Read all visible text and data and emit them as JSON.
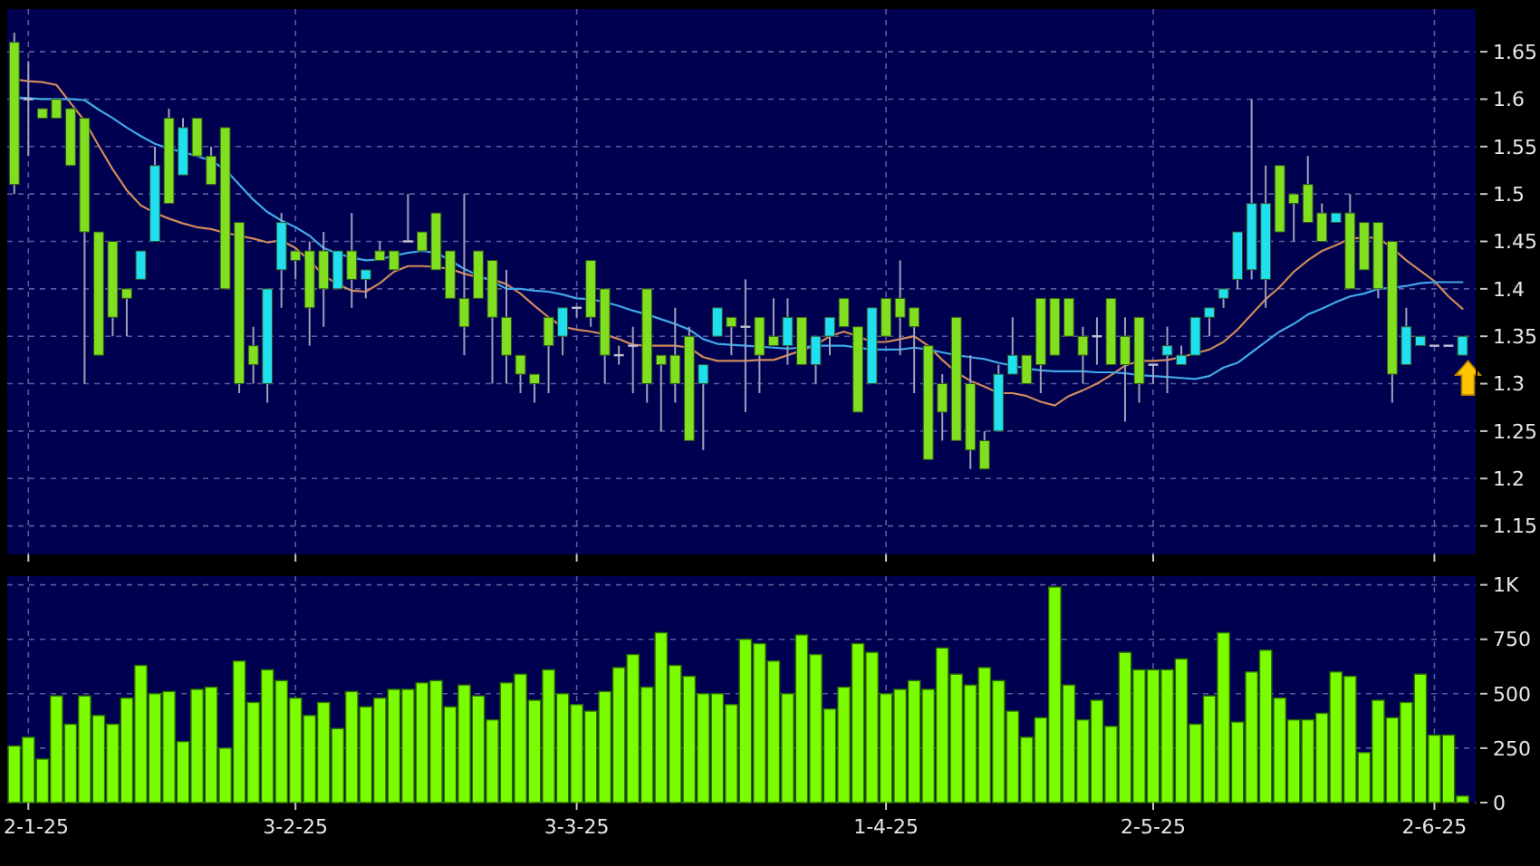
{
  "chart_data": [
    {
      "type": "candlestick",
      "categories": [
        null,
        null,
        null,
        null,
        null,
        null,
        null,
        null,
        null,
        null,
        null,
        null,
        null,
        null,
        null,
        null,
        null,
        null,
        null,
        null,
        null,
        null,
        null,
        null,
        null,
        null,
        null,
        null,
        null,
        null,
        null,
        null,
        null,
        null,
        null,
        null,
        null,
        null,
        null,
        null,
        null,
        null,
        null,
        null,
        null,
        null,
        null,
        null,
        null,
        null,
        null,
        null,
        null,
        null,
        null,
        null,
        null,
        null,
        null,
        null,
        null,
        null,
        null,
        null,
        null,
        null,
        null,
        null,
        null,
        null,
        null,
        null,
        null,
        null,
        null,
        null,
        null,
        null,
        null,
        null,
        null,
        null,
        null,
        null,
        null,
        null,
        null,
        null,
        null,
        null,
        null,
        null,
        null,
        null,
        null,
        null,
        null,
        null,
        null,
        null,
        null,
        null,
        null,
        null
      ],
      "ohlc": [
        [
          1.66,
          1.67,
          1.5,
          1.51
        ],
        [
          1.6,
          1.64,
          1.54,
          1.6
        ],
        [
          1.59,
          1.59,
          1.58,
          1.58
        ],
        [
          1.6,
          1.6,
          1.58,
          1.58
        ],
        [
          1.59,
          1.59,
          1.53,
          1.53
        ],
        [
          1.58,
          1.58,
          1.3,
          1.46
        ],
        [
          1.46,
          1.46,
          1.33,
          1.33
        ],
        [
          1.45,
          1.45,
          1.35,
          1.37
        ],
        [
          1.4,
          1.4,
          1.35,
          1.39
        ],
        [
          1.41,
          1.44,
          1.41,
          1.44
        ],
        [
          1.45,
          1.55,
          1.45,
          1.53
        ],
        [
          1.58,
          1.59,
          1.49,
          1.49
        ],
        [
          1.52,
          1.58,
          1.52,
          1.57
        ],
        [
          1.58,
          1.58,
          1.54,
          1.54
        ],
        [
          1.54,
          1.55,
          1.51,
          1.51
        ],
        [
          1.57,
          1.57,
          1.4,
          1.4
        ],
        [
          1.47,
          1.47,
          1.29,
          1.3
        ],
        [
          1.34,
          1.36,
          1.3,
          1.32
        ],
        [
          1.3,
          1.4,
          1.28,
          1.4
        ],
        [
          1.42,
          1.48,
          1.38,
          1.47
        ],
        [
          1.44,
          1.44,
          1.41,
          1.43
        ],
        [
          1.44,
          1.45,
          1.34,
          1.38
        ],
        [
          1.44,
          1.46,
          1.36,
          1.4
        ],
        [
          1.4,
          1.44,
          1.4,
          1.44
        ],
        [
          1.44,
          1.48,
          1.38,
          1.41
        ],
        [
          1.41,
          1.42,
          1.39,
          1.42
        ],
        [
          1.44,
          1.45,
          1.43,
          1.43
        ],
        [
          1.44,
          1.44,
          1.42,
          1.42
        ],
        [
          1.45,
          1.5,
          1.45,
          1.45
        ],
        [
          1.46,
          1.46,
          1.44,
          1.44
        ],
        [
          1.48,
          1.48,
          1.42,
          1.42
        ],
        [
          1.44,
          1.44,
          1.39,
          1.39
        ],
        [
          1.39,
          1.5,
          1.33,
          1.36
        ],
        [
          1.44,
          1.44,
          1.39,
          1.39
        ],
        [
          1.43,
          1.43,
          1.3,
          1.37
        ],
        [
          1.37,
          1.42,
          1.3,
          1.33
        ],
        [
          1.33,
          1.33,
          1.29,
          1.31
        ],
        [
          1.31,
          1.31,
          1.28,
          1.3
        ],
        [
          1.37,
          1.37,
          1.29,
          1.34
        ],
        [
          1.35,
          1.38,
          1.33,
          1.38
        ],
        [
          1.38,
          1.38,
          1.37,
          1.38
        ],
        [
          1.43,
          1.43,
          1.36,
          1.37
        ],
        [
          1.4,
          1.4,
          1.3,
          1.33
        ],
        [
          1.33,
          1.34,
          1.32,
          1.33
        ],
        [
          1.34,
          1.36,
          1.29,
          1.34
        ],
        [
          1.4,
          1.4,
          1.28,
          1.3
        ],
        [
          1.33,
          1.33,
          1.25,
          1.32
        ],
        [
          1.33,
          1.38,
          1.28,
          1.3
        ],
        [
          1.35,
          1.36,
          1.24,
          1.24
        ],
        [
          1.3,
          1.32,
          1.23,
          1.32
        ],
        [
          1.35,
          1.38,
          1.35,
          1.38
        ],
        [
          1.37,
          1.37,
          1.33,
          1.36
        ],
        [
          1.36,
          1.41,
          1.27,
          1.36
        ],
        [
          1.37,
          1.37,
          1.29,
          1.33
        ],
        [
          1.35,
          1.39,
          1.34,
          1.34
        ],
        [
          1.34,
          1.39,
          1.32,
          1.37
        ],
        [
          1.37,
          1.37,
          1.32,
          1.32
        ],
        [
          1.32,
          1.35,
          1.3,
          1.35
        ],
        [
          1.35,
          1.37,
          1.33,
          1.37
        ],
        [
          1.39,
          1.39,
          1.36,
          1.36
        ],
        [
          1.36,
          1.36,
          1.27,
          1.27
        ],
        [
          1.3,
          1.38,
          1.3,
          1.38
        ],
        [
          1.39,
          1.39,
          1.35,
          1.35
        ],
        [
          1.39,
          1.43,
          1.33,
          1.37
        ],
        [
          1.38,
          1.38,
          1.29,
          1.36
        ],
        [
          1.34,
          1.34,
          1.22,
          1.22
        ],
        [
          1.3,
          1.31,
          1.24,
          1.27
        ],
        [
          1.37,
          1.37,
          1.24,
          1.24
        ],
        [
          1.3,
          1.33,
          1.21,
          1.23
        ],
        [
          1.24,
          1.25,
          1.21,
          1.21
        ],
        [
          1.25,
          1.32,
          1.25,
          1.31
        ],
        [
          1.31,
          1.37,
          1.31,
          1.33
        ],
        [
          1.33,
          1.33,
          1.3,
          1.3
        ],
        [
          1.39,
          1.39,
          1.29,
          1.32
        ],
        [
          1.39,
          1.39,
          1.33,
          1.33
        ],
        [
          1.39,
          1.39,
          1.35,
          1.35
        ],
        [
          1.35,
          1.36,
          1.3,
          1.33
        ],
        [
          1.35,
          1.37,
          1.32,
          1.35
        ],
        [
          1.39,
          1.39,
          1.32,
          1.32
        ],
        [
          1.35,
          1.37,
          1.26,
          1.32
        ],
        [
          1.37,
          1.37,
          1.28,
          1.3
        ],
        [
          1.32,
          1.32,
          1.3,
          1.32
        ],
        [
          1.33,
          1.36,
          1.29,
          1.34
        ],
        [
          1.32,
          1.34,
          1.32,
          1.33
        ],
        [
          1.33,
          1.37,
          1.33,
          1.37
        ],
        [
          1.37,
          1.38,
          1.35,
          1.38
        ],
        [
          1.39,
          1.4,
          1.38,
          1.4
        ],
        [
          1.41,
          1.46,
          1.4,
          1.46
        ],
        [
          1.42,
          1.6,
          1.41,
          1.49
        ],
        [
          1.41,
          1.53,
          1.38,
          1.49
        ],
        [
          1.53,
          1.53,
          1.46,
          1.46
        ],
        [
          1.5,
          1.5,
          1.45,
          1.49
        ],
        [
          1.51,
          1.54,
          1.47,
          1.47
        ],
        [
          1.48,
          1.49,
          1.45,
          1.45
        ],
        [
          1.47,
          1.48,
          1.47,
          1.48
        ],
        [
          1.48,
          1.5,
          1.4,
          1.4
        ],
        [
          1.47,
          1.47,
          1.42,
          1.42
        ],
        [
          1.47,
          1.47,
          1.39,
          1.4
        ],
        [
          1.45,
          1.45,
          1.28,
          1.31
        ],
        [
          1.32,
          1.38,
          1.32,
          1.36
        ],
        [
          1.34,
          1.35,
          1.34,
          1.35
        ],
        [
          1.34,
          1.34,
          1.34,
          1.34
        ],
        [
          1.34,
          1.34,
          1.34,
          1.34
        ],
        [
          1.33,
          1.35,
          1.33,
          1.35
        ]
      ],
      "colors": [
        "#80e020",
        "#c0c0d0",
        "#80e020",
        "#80e020",
        "#80e020",
        "#80e020",
        "#80e020",
        "#80e020",
        "#80e020",
        "#20e0f0",
        "#20e0f0",
        "#80e020",
        "#20e0f0",
        "#80e020",
        "#80e020",
        "#80e020",
        "#80e020",
        "#80e020",
        "#20e0f0",
        "#20e0f0",
        "#80e020",
        "#80e020",
        "#80e020",
        "#20e0f0",
        "#80e020",
        "#20e0f0",
        "#80e020",
        "#80e020",
        "#c0c0d0",
        "#80e020",
        "#80e020",
        "#80e020",
        "#80e020",
        "#80e020",
        "#80e020",
        "#80e020",
        "#80e020",
        "#80e020",
        "#80e020",
        "#20e0f0",
        "#c0c0d0",
        "#80e020",
        "#80e020",
        "#c0c0d0",
        "#c0c0d0",
        "#80e020",
        "#80e020",
        "#80e020",
        "#80e020",
        "#20e0f0",
        "#20e0f0",
        "#80e020",
        "#c0c0d0",
        "#80e020",
        "#80e020",
        "#20e0f0",
        "#80e020",
        "#20e0f0",
        "#20e0f0",
        "#80e020",
        "#80e020",
        "#20e0f0",
        "#80e020",
        "#80e020",
        "#80e020",
        "#80e020",
        "#80e020",
        "#80e020",
        "#80e020",
        "#80e020",
        "#20e0f0",
        "#20e0f0",
        "#80e020",
        "#80e020",
        "#80e020",
        "#80e020",
        "#80e020",
        "#c0c0d0",
        "#80e020",
        "#80e020",
        "#80e020",
        "#c0c0d0",
        "#20e0f0",
        "#20e0f0",
        "#20e0f0",
        "#20e0f0",
        "#20e0f0",
        "#20e0f0",
        "#20e0f0",
        "#20e0f0",
        "#80e020",
        "#80e020",
        "#80e020",
        "#80e020",
        "#20e0f0",
        "#80e020",
        "#80e020",
        "#80e020",
        "#80e020",
        "#20e0f0",
        "#20e0f0",
        "#c0c0d0",
        "#c0c0d0",
        "#20e0f0"
      ],
      "series": [
        {
          "type": "line",
          "color": "#d08a5a",
          "values": [
            1.621,
            1.619,
            1.618,
            1.615,
            1.596,
            1.577,
            1.551,
            1.526,
            1.504,
            1.488,
            1.48,
            1.474,
            1.469,
            1.465,
            1.463,
            1.459,
            1.456,
            1.453,
            1.449,
            1.451,
            1.443,
            1.43,
            1.414,
            1.405,
            1.398,
            1.397,
            1.406,
            1.418,
            1.424,
            1.424,
            1.423,
            1.421,
            1.416,
            1.412,
            1.41,
            1.405,
            1.395,
            1.382,
            1.37,
            1.36,
            1.357,
            1.355,
            1.352,
            1.347,
            1.341,
            1.34,
            1.34,
            1.34,
            1.338,
            1.328,
            1.324,
            1.324,
            1.324,
            1.325,
            1.325,
            1.33,
            1.335,
            1.341,
            1.35,
            1.355,
            1.35,
            1.344,
            1.344,
            1.347,
            1.35,
            1.34,
            1.325,
            1.312,
            1.303,
            1.297,
            1.29,
            1.29,
            1.287,
            1.281,
            1.277,
            1.287,
            1.293,
            1.3,
            1.309,
            1.319,
            1.324,
            1.324,
            1.325,
            1.328,
            1.332,
            1.336,
            1.344,
            1.357,
            1.373,
            1.389,
            1.402,
            1.418,
            1.43,
            1.44,
            1.446,
            1.453,
            1.454,
            1.454,
            1.443,
            1.43,
            1.419,
            1.408,
            1.392,
            1.379
          ]
        },
        {
          "type": "line",
          "color": "#40a8e8",
          "values": [
            1.602,
            1.601,
            1.6,
            1.6,
            1.6,
            1.599,
            1.589,
            1.58,
            1.57,
            1.561,
            1.553,
            1.548,
            1.544,
            1.54,
            1.535,
            1.526,
            1.51,
            1.494,
            1.481,
            1.472,
            1.465,
            1.456,
            1.443,
            1.437,
            1.433,
            1.43,
            1.431,
            1.435,
            1.438,
            1.44,
            1.438,
            1.43,
            1.421,
            1.414,
            1.408,
            1.4,
            1.4,
            1.398,
            1.397,
            1.394,
            1.39,
            1.389,
            1.386,
            1.382,
            1.377,
            1.373,
            1.368,
            1.363,
            1.357,
            1.347,
            1.342,
            1.341,
            1.34,
            1.339,
            1.338,
            1.337,
            1.338,
            1.34,
            1.34,
            1.34,
            1.338,
            1.336,
            1.336,
            1.336,
            1.338,
            1.336,
            1.333,
            1.33,
            1.328,
            1.326,
            1.322,
            1.319,
            1.316,
            1.314,
            1.313,
            1.313,
            1.313,
            1.312,
            1.312,
            1.311,
            1.309,
            1.308,
            1.307,
            1.306,
            1.305,
            1.308,
            1.317,
            1.322,
            1.333,
            1.344,
            1.355,
            1.363,
            1.373,
            1.379,
            1.386,
            1.392,
            1.395,
            1.4,
            1.401,
            1.403,
            1.406,
            1.407,
            1.407,
            1.407
          ]
        }
      ],
      "ylim": [
        1.12,
        1.695
      ],
      "yticks": [
        1.15,
        1.2,
        1.25,
        1.3,
        1.35,
        1.4,
        1.45,
        1.5,
        1.55,
        1.6,
        1.65
      ],
      "grid": true,
      "tick_labels": "y"
    },
    {
      "type": "bar",
      "categories": [
        null,
        "2-1-25",
        null,
        null,
        null,
        null,
        null,
        null,
        null,
        null,
        null,
        null,
        null,
        null,
        null,
        null,
        null,
        null,
        null,
        null,
        "3-2-25",
        null,
        null,
        null,
        null,
        null,
        null,
        null,
        null,
        null,
        null,
        null,
        null,
        null,
        null,
        null,
        null,
        null,
        null,
        null,
        "3-3-25",
        null,
        null,
        null,
        null,
        null,
        null,
        null,
        null,
        null,
        null,
        null,
        null,
        null,
        null,
        null,
        null,
        null,
        null,
        null,
        null,
        null,
        "1-4-25",
        null,
        null,
        null,
        null,
        null,
        null,
        null,
        null,
        null,
        null,
        null,
        null,
        null,
        null,
        null,
        null,
        null,
        null,
        "2-5-25",
        null,
        null,
        null,
        null,
        null,
        null,
        null,
        null,
        null,
        null,
        null,
        null,
        null,
        null,
        null,
        null,
        null,
        null,
        null,
        "2-6-25",
        null,
        null
      ],
      "values": [
        260,
        300,
        200,
        490,
        360,
        490,
        400,
        360,
        480,
        630,
        500,
        510,
        280,
        520,
        530,
        250,
        650,
        460,
        610,
        560,
        480,
        400,
        460,
        340,
        510,
        440,
        480,
        520,
        520,
        550,
        560,
        440,
        540,
        490,
        380,
        550,
        590,
        470,
        610,
        500,
        450,
        420,
        510,
        620,
        680,
        530,
        780,
        630,
        580,
        500,
        500,
        450,
        750,
        730,
        650,
        500,
        770,
        680,
        430,
        530,
        730,
        690,
        500,
        520,
        560,
        520,
        710,
        590,
        540,
        620,
        560,
        420,
        300,
        390,
        990,
        540,
        380,
        470,
        350,
        690,
        610,
        610,
        610,
        660,
        360,
        490,
        780,
        370,
        600,
        700,
        480,
        380,
        380,
        410,
        600,
        580,
        230,
        470,
        390,
        460,
        590,
        310,
        310,
        30
      ],
      "color": "#7cfc00",
      "ylim": [
        0,
        1040
      ],
      "yticks": [
        0,
        250,
        500,
        750,
        {
          "value": 1000,
          "label": "1K"
        }
      ],
      "grid": true
    }
  ]
}
